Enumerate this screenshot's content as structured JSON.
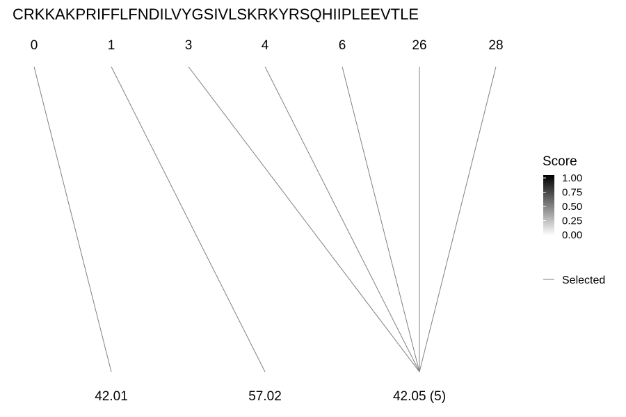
{
  "sequence": "CRKKAKPRIFFLFNDILVYGSIVLSKRKYRSQHIIPLEEVTLE",
  "top_positions": [
    "0",
    "1",
    "3",
    "4",
    "6",
    "26",
    "28"
  ],
  "bottom_nodes": [
    "42.01",
    "57.02",
    "42.05 (5)"
  ],
  "links": [
    {
      "from": 0,
      "to": 0
    },
    {
      "from": 1,
      "to": 1
    },
    {
      "from": 2,
      "to": 2
    },
    {
      "from": 3,
      "to": 2
    },
    {
      "from": 4,
      "to": 2
    },
    {
      "from": 5,
      "to": 2
    },
    {
      "from": 6,
      "to": 2
    }
  ],
  "line_color": "#808080",
  "legend": {
    "title": "Score",
    "ticks": [
      "1.00",
      "0.75",
      "0.50",
      "0.25",
      "0.00"
    ],
    "gradient_colors": [
      "#000000",
      "#ffffff"
    ],
    "selected_label": "Selected"
  }
}
